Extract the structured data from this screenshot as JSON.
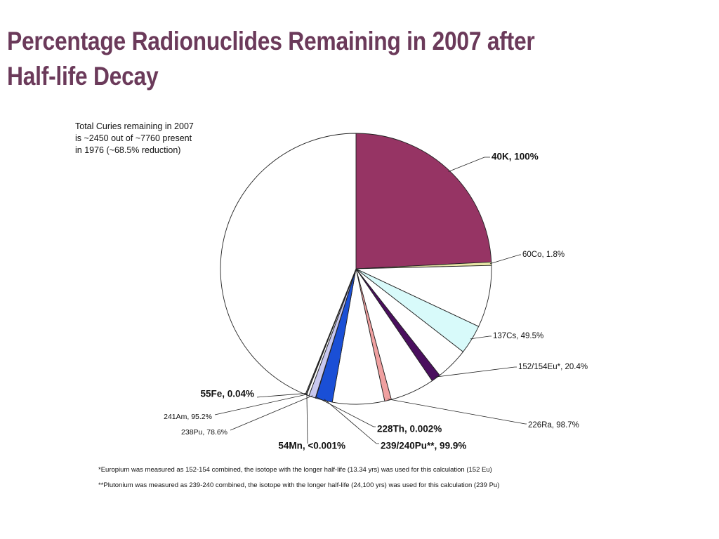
{
  "slide": {
    "title_line1": "Percentage Radionuclides Remaining in 2007 after",
    "title_line2": "Half-life Decay"
  },
  "summary_note": {
    "line1": "Total Curies remaining in 2007",
    "line2": "is ~2450 out of ~7760 present",
    "line3": "in 1976 (~68.5% reduction)"
  },
  "footnotes": {
    "europium": "*Europium was measured as 152-154 combined, the isotope with the longer half-life (13.34 yrs) was used  for this calculation (152 Eu)",
    "plutonium": "**Plutonium was measured as 239-240 combined, the isotope with the longer half-life (24,100 yrs) was used for this calculation (239 Pu)"
  },
  "colors": {
    "title": "#6b3a5a",
    "40K": "#963464",
    "60Co": "#e8e6a6",
    "137Cs": "#d8fafa",
    "152_154Eu": "#4a0f5e",
    "226Ra": "#f0a0a0",
    "239_240Pu": "#1a4fd6",
    "238Pu": "#c8c8f0",
    "remaining": "#ffffff"
  },
  "chart_data": {
    "type": "pie",
    "slices": [
      {
        "label": "40K, 100%",
        "value": 24.2,
        "color": "#963464"
      },
      {
        "label": "60Co, 1.8%",
        "value": 0.4,
        "color": "#e8e6a6"
      },
      {
        "label": "",
        "value": 7.4,
        "color": "#ffffff"
      },
      {
        "label": "137Cs, 49.5%",
        "value": 3.5,
        "color": "#d8fafa"
      },
      {
        "label": "",
        "value": 3.9,
        "color": "#ffffff"
      },
      {
        "label": "152/154Eu*, 20.4%",
        "value": 1.1,
        "color": "#4a0f5e"
      },
      {
        "label": "",
        "value": 5.3,
        "color": "#ffffff"
      },
      {
        "label": "226Ra, 98.7%",
        "value": 0.8,
        "color": "#f0a0a0"
      },
      {
        "label": "",
        "value": 6.2,
        "color": "#ffffff"
      },
      {
        "label": "239/240Pu**, 99.9%",
        "value": 2.0,
        "color": "#1a4fd6"
      },
      {
        "label": "228Th, 0.002%",
        "value": 0.05,
        "color": "#ffffff"
      },
      {
        "label": "238Pu, 78.6%",
        "value": 0.8,
        "color": "#c8c8f0"
      },
      {
        "label": "241Am, 95.2%",
        "value": 0.3,
        "color": "#ffffff"
      },
      {
        "label": "54Mn, <0.001%",
        "value": 0.05,
        "color": "#ffffff"
      },
      {
        "label": "55Fe, 0.04%",
        "value": 0.1,
        "color": "#ffffff"
      },
      {
        "label": "",
        "value": 43.9,
        "color": "#ffffff"
      }
    ]
  }
}
